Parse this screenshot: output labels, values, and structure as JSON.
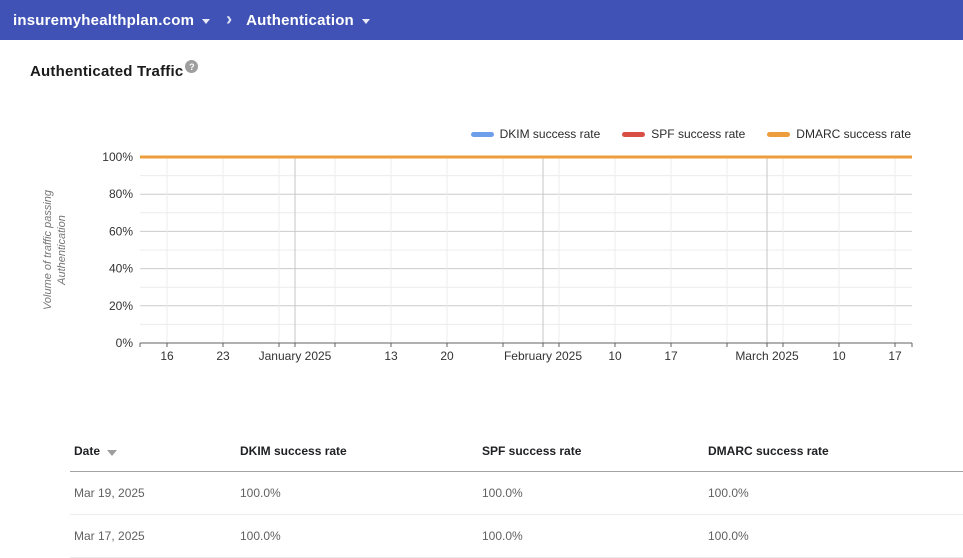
{
  "topbar": {
    "domain": "insuremyhealthplan.com",
    "section": "Authentication"
  },
  "page": {
    "title": "Authenticated Traffic",
    "help_icon_glyph": "?"
  },
  "colors": {
    "topbar_bg": "#4052b5",
    "dkim_blue": "#6d9eeb",
    "spf_red": "#da4f43",
    "dmarc_orange": "#ed9d3b",
    "gridline_major": "#cccccc",
    "gridline_minor": "#ececec",
    "axis_baseline": "#616161"
  },
  "chart_data": {
    "type": "line",
    "title": "Authenticated Traffic",
    "ylabel": "Volume of traffic passing Authentication",
    "ylabel_line1": "Volume of traffic passing",
    "ylabel_line2": "Authentication",
    "ylim": [
      0,
      100
    ],
    "grid": true,
    "legend_position": "top-right",
    "y_tick_labels": [
      "0%",
      "20%",
      "40%",
      "60%",
      "80%",
      "100%"
    ],
    "x_ticks": [
      {
        "label": "16",
        "day": 0,
        "month_boundary": false
      },
      {
        "label": "23",
        "day": 7,
        "month_boundary": false
      },
      {
        "label": "",
        "day": 14,
        "month_boundary": false
      },
      {
        "label": "January 2025",
        "day": 16,
        "month_boundary": true
      },
      {
        "label": "",
        "day": 21,
        "month_boundary": false
      },
      {
        "label": "13",
        "day": 28,
        "month_boundary": false
      },
      {
        "label": "20",
        "day": 35,
        "month_boundary": false
      },
      {
        "label": "",
        "day": 42,
        "month_boundary": false
      },
      {
        "label": "February 2025",
        "day": 47,
        "month_boundary": true
      },
      {
        "label": "",
        "day": 49,
        "month_boundary": false
      },
      {
        "label": "10",
        "day": 56,
        "month_boundary": false
      },
      {
        "label": "17",
        "day": 63,
        "month_boundary": false
      },
      {
        "label": "",
        "day": 70,
        "month_boundary": false
      },
      {
        "label": "March 2025",
        "day": 75,
        "month_boundary": true
      },
      {
        "label": "",
        "day": 77,
        "month_boundary": false
      },
      {
        "label": "10",
        "day": 84,
        "month_boundary": false
      },
      {
        "label": "17",
        "day": 91,
        "month_boundary": false
      }
    ],
    "series": [
      {
        "name": "DKIM success rate",
        "color": "#6d9eeb",
        "constant_value_pct": 100
      },
      {
        "name": "SPF success rate",
        "color": "#da4f43",
        "constant_value_pct": 100
      },
      {
        "name": "DMARC success rate",
        "color": "#ed9d3b",
        "constant_value_pct": 100
      }
    ]
  },
  "table": {
    "columns": [
      {
        "label": "Date",
        "sort": "desc"
      },
      {
        "label": "DKIM success rate",
        "sort": ""
      },
      {
        "label": "SPF success rate",
        "sort": ""
      },
      {
        "label": "DMARC success rate",
        "sort": ""
      }
    ],
    "rows": [
      [
        "Mar 19, 2025",
        "100.0%",
        "100.0%",
        "100.0%"
      ],
      [
        "Mar 17, 2025",
        "100.0%",
        "100.0%",
        "100.0%"
      ]
    ]
  }
}
